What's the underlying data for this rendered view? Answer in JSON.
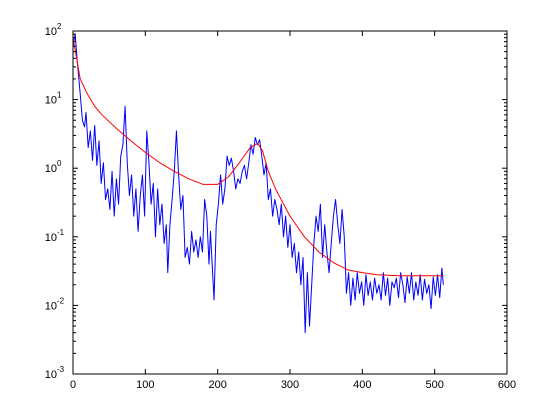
{
  "chart_data": {
    "type": "line",
    "title": "",
    "xlabel": "",
    "ylabel": "",
    "xlim": [
      0,
      600
    ],
    "ylim": [
      0.001,
      100
    ],
    "yscale": "log",
    "grid": false,
    "legend": "none",
    "x_ticks": [
      {
        "value": 0,
        "label": "0"
      },
      {
        "value": 100,
        "label": "100"
      },
      {
        "value": 200,
        "label": "200"
      },
      {
        "value": 300,
        "label": "300"
      },
      {
        "value": 400,
        "label": "400"
      },
      {
        "value": 500,
        "label": "500"
      },
      {
        "value": 600,
        "label": "600"
      }
    ],
    "y_ticks": [
      {
        "value": 0.001,
        "base": "10",
        "exp": "-3"
      },
      {
        "value": 0.01,
        "base": "10",
        "exp": "-2"
      },
      {
        "value": 0.1,
        "base": "10",
        "exp": "-1"
      },
      {
        "value": 1,
        "base": "10",
        "exp": "0"
      },
      {
        "value": 10,
        "base": "10",
        "exp": "1"
      },
      {
        "value": 100,
        "base": "10",
        "exp": "2"
      }
    ],
    "series": [
      {
        "color": "#0000ff",
        "points": [
          [
            0,
            60
          ],
          [
            3,
            90
          ],
          [
            6,
            35
          ],
          [
            10,
            12
          ],
          [
            13,
            5
          ],
          [
            16,
            4
          ],
          [
            18,
            6.5
          ],
          [
            21,
            2
          ],
          [
            24,
            3.5
          ],
          [
            27,
            1.3
          ],
          [
            30,
            4.2
          ],
          [
            33,
            1.1
          ],
          [
            36,
            2.5
          ],
          [
            39,
            0.6
          ],
          [
            42,
            1.2
          ],
          [
            45,
            0.35
          ],
          [
            48,
            0.5
          ],
          [
            51,
            0.25
          ],
          [
            54,
            0.9
          ],
          [
            57,
            0.2
          ],
          [
            60,
            0.7
          ],
          [
            63,
            0.3
          ],
          [
            66,
            1.5
          ],
          [
            69,
            2.2
          ],
          [
            72,
            8
          ],
          [
            75,
            1.2
          ],
          [
            78,
            0.4
          ],
          [
            81,
            0.8
          ],
          [
            84,
            0.2
          ],
          [
            87,
            0.5
          ],
          [
            90,
            0.12
          ],
          [
            93,
            0.4
          ],
          [
            96,
            0.8
          ],
          [
            99,
            0.2
          ],
          [
            102,
            3.5
          ],
          [
            105,
            1.2
          ],
          [
            108,
            0.3
          ],
          [
            111,
            0.6
          ],
          [
            114,
            0.1
          ],
          [
            117,
            0.5
          ],
          [
            120,
            0.15
          ],
          [
            123,
            0.3
          ],
          [
            126,
            0.08
          ],
          [
            129,
            0.15
          ],
          [
            131,
            0.03
          ],
          [
            134,
            0.15
          ],
          [
            137,
            0.35
          ],
          [
            140,
            0.9
          ],
          [
            143,
            3.5
          ],
          [
            146,
            0.8
          ],
          [
            149,
            0.25
          ],
          [
            152,
            0.4
          ],
          [
            155,
            0.05
          ],
          [
            158,
            0.07
          ],
          [
            161,
            0.04
          ],
          [
            164,
            0.12
          ],
          [
            167,
            0.06
          ],
          [
            170,
            0.09
          ],
          [
            173,
            0.05
          ],
          [
            176,
            0.1
          ],
          [
            179,
            0.06
          ],
          [
            182,
            0.35
          ],
          [
            185,
            0.2
          ],
          [
            188,
            0.04
          ],
          [
            190,
            0.12
          ],
          [
            193,
            0.03
          ],
          [
            195,
            0.012
          ],
          [
            198,
            0.15
          ],
          [
            201,
            0.3
          ],
          [
            204,
            0.8
          ],
          [
            207,
            0.3
          ],
          [
            210,
            0.5
          ],
          [
            213,
            1.5
          ],
          [
            216,
            1.1
          ],
          [
            219,
            1.4
          ],
          [
            222,
            0.9
          ],
          [
            225,
            0.5
          ],
          [
            228,
            0.7
          ],
          [
            231,
            0.6
          ],
          [
            234,
            0.9
          ],
          [
            237,
            1.1
          ],
          [
            240,
            0.7
          ],
          [
            243,
            1.2
          ],
          [
            246,
            2.2
          ],
          [
            249,
            1.6
          ],
          [
            252,
            2.8
          ],
          [
            255,
            2.2
          ],
          [
            258,
            2.6
          ],
          [
            261,
            1.5
          ],
          [
            264,
            0.8
          ],
          [
            267,
            1.2
          ],
          [
            270,
            0.35
          ],
          [
            273,
            0.5
          ],
          [
            276,
            0.2
          ],
          [
            279,
            0.35
          ],
          [
            282,
            0.25
          ],
          [
            285,
            0.15
          ],
          [
            288,
            0.3
          ],
          [
            291,
            0.1
          ],
          [
            294,
            0.2
          ],
          [
            297,
            0.07
          ],
          [
            300,
            0.15
          ],
          [
            303,
            0.05
          ],
          [
            306,
            0.08
          ],
          [
            309,
            0.03
          ],
          [
            312,
            0.06
          ],
          [
            315,
            0.02
          ],
          [
            318,
            0.05
          ],
          [
            321,
            0.004
          ],
          [
            324,
            0.03
          ],
          [
            327,
            0.005
          ],
          [
            330,
            0.02
          ],
          [
            333,
            0.08
          ],
          [
            336,
            0.2
          ],
          [
            339,
            0.12
          ],
          [
            342,
            0.3
          ],
          [
            345,
            0.05
          ],
          [
            348,
            0.15
          ],
          [
            351,
            0.06
          ],
          [
            354,
            0.03
          ],
          [
            357,
            0.08
          ],
          [
            360,
            0.2
          ],
          [
            363,
            0.35
          ],
          [
            366,
            0.15
          ],
          [
            369,
            0.08
          ],
          [
            372,
            0.25
          ],
          [
            375,
            0.1
          ],
          [
            378,
            0.015
          ],
          [
            381,
            0.03
          ],
          [
            384,
            0.01
          ],
          [
            387,
            0.025
          ],
          [
            390,
            0.012
          ],
          [
            393,
            0.03
          ],
          [
            396,
            0.015
          ],
          [
            399,
            0.022
          ],
          [
            402,
            0.01
          ],
          [
            405,
            0.028
          ],
          [
            408,
            0.014
          ],
          [
            411,
            0.022
          ],
          [
            414,
            0.012
          ],
          [
            417,
            0.025
          ],
          [
            420,
            0.015
          ],
          [
            423,
            0.02
          ],
          [
            426,
            0.012
          ],
          [
            429,
            0.03
          ],
          [
            432,
            0.014
          ],
          [
            435,
            0.025
          ],
          [
            438,
            0.01
          ],
          [
            441,
            0.022
          ],
          [
            444,
            0.018
          ],
          [
            447,
            0.025
          ],
          [
            450,
            0.013
          ],
          [
            453,
            0.03
          ],
          [
            456,
            0.02
          ],
          [
            459,
            0.011
          ],
          [
            462,
            0.026
          ],
          [
            465,
            0.015
          ],
          [
            468,
            0.03
          ],
          [
            471,
            0.012
          ],
          [
            474,
            0.022
          ],
          [
            477,
            0.014
          ],
          [
            480,
            0.028
          ],
          [
            483,
            0.012
          ],
          [
            486,
            0.024
          ],
          [
            489,
            0.015
          ],
          [
            492,
            0.02
          ],
          [
            495,
            0.009
          ],
          [
            498,
            0.026
          ],
          [
            501,
            0.014
          ],
          [
            504,
            0.028
          ],
          [
            507,
            0.013
          ],
          [
            510,
            0.035
          ],
          [
            512,
            0.02
          ]
        ]
      },
      {
        "color": "#ff0000",
        "points": [
          [
            0,
            80
          ],
          [
            5,
            40
          ],
          [
            10,
            20
          ],
          [
            20,
            12
          ],
          [
            30,
            8
          ],
          [
            40,
            6
          ],
          [
            60,
            3.8
          ],
          [
            80,
            2.5
          ],
          [
            100,
            1.7
          ],
          [
            120,
            1.2
          ],
          [
            140,
            0.9
          ],
          [
            160,
            0.7
          ],
          [
            180,
            0.58
          ],
          [
            200,
            0.58
          ],
          [
            215,
            0.75
          ],
          [
            230,
            1.2
          ],
          [
            245,
            2.0
          ],
          [
            255,
            2.3
          ],
          [
            262,
            1.8
          ],
          [
            270,
            0.9
          ],
          [
            280,
            0.5
          ],
          [
            300,
            0.2
          ],
          [
            320,
            0.1
          ],
          [
            340,
            0.06
          ],
          [
            360,
            0.042
          ],
          [
            380,
            0.033
          ],
          [
            400,
            0.03
          ],
          [
            420,
            0.028
          ],
          [
            450,
            0.027
          ],
          [
            480,
            0.027
          ],
          [
            512,
            0.027
          ]
        ]
      }
    ]
  }
}
